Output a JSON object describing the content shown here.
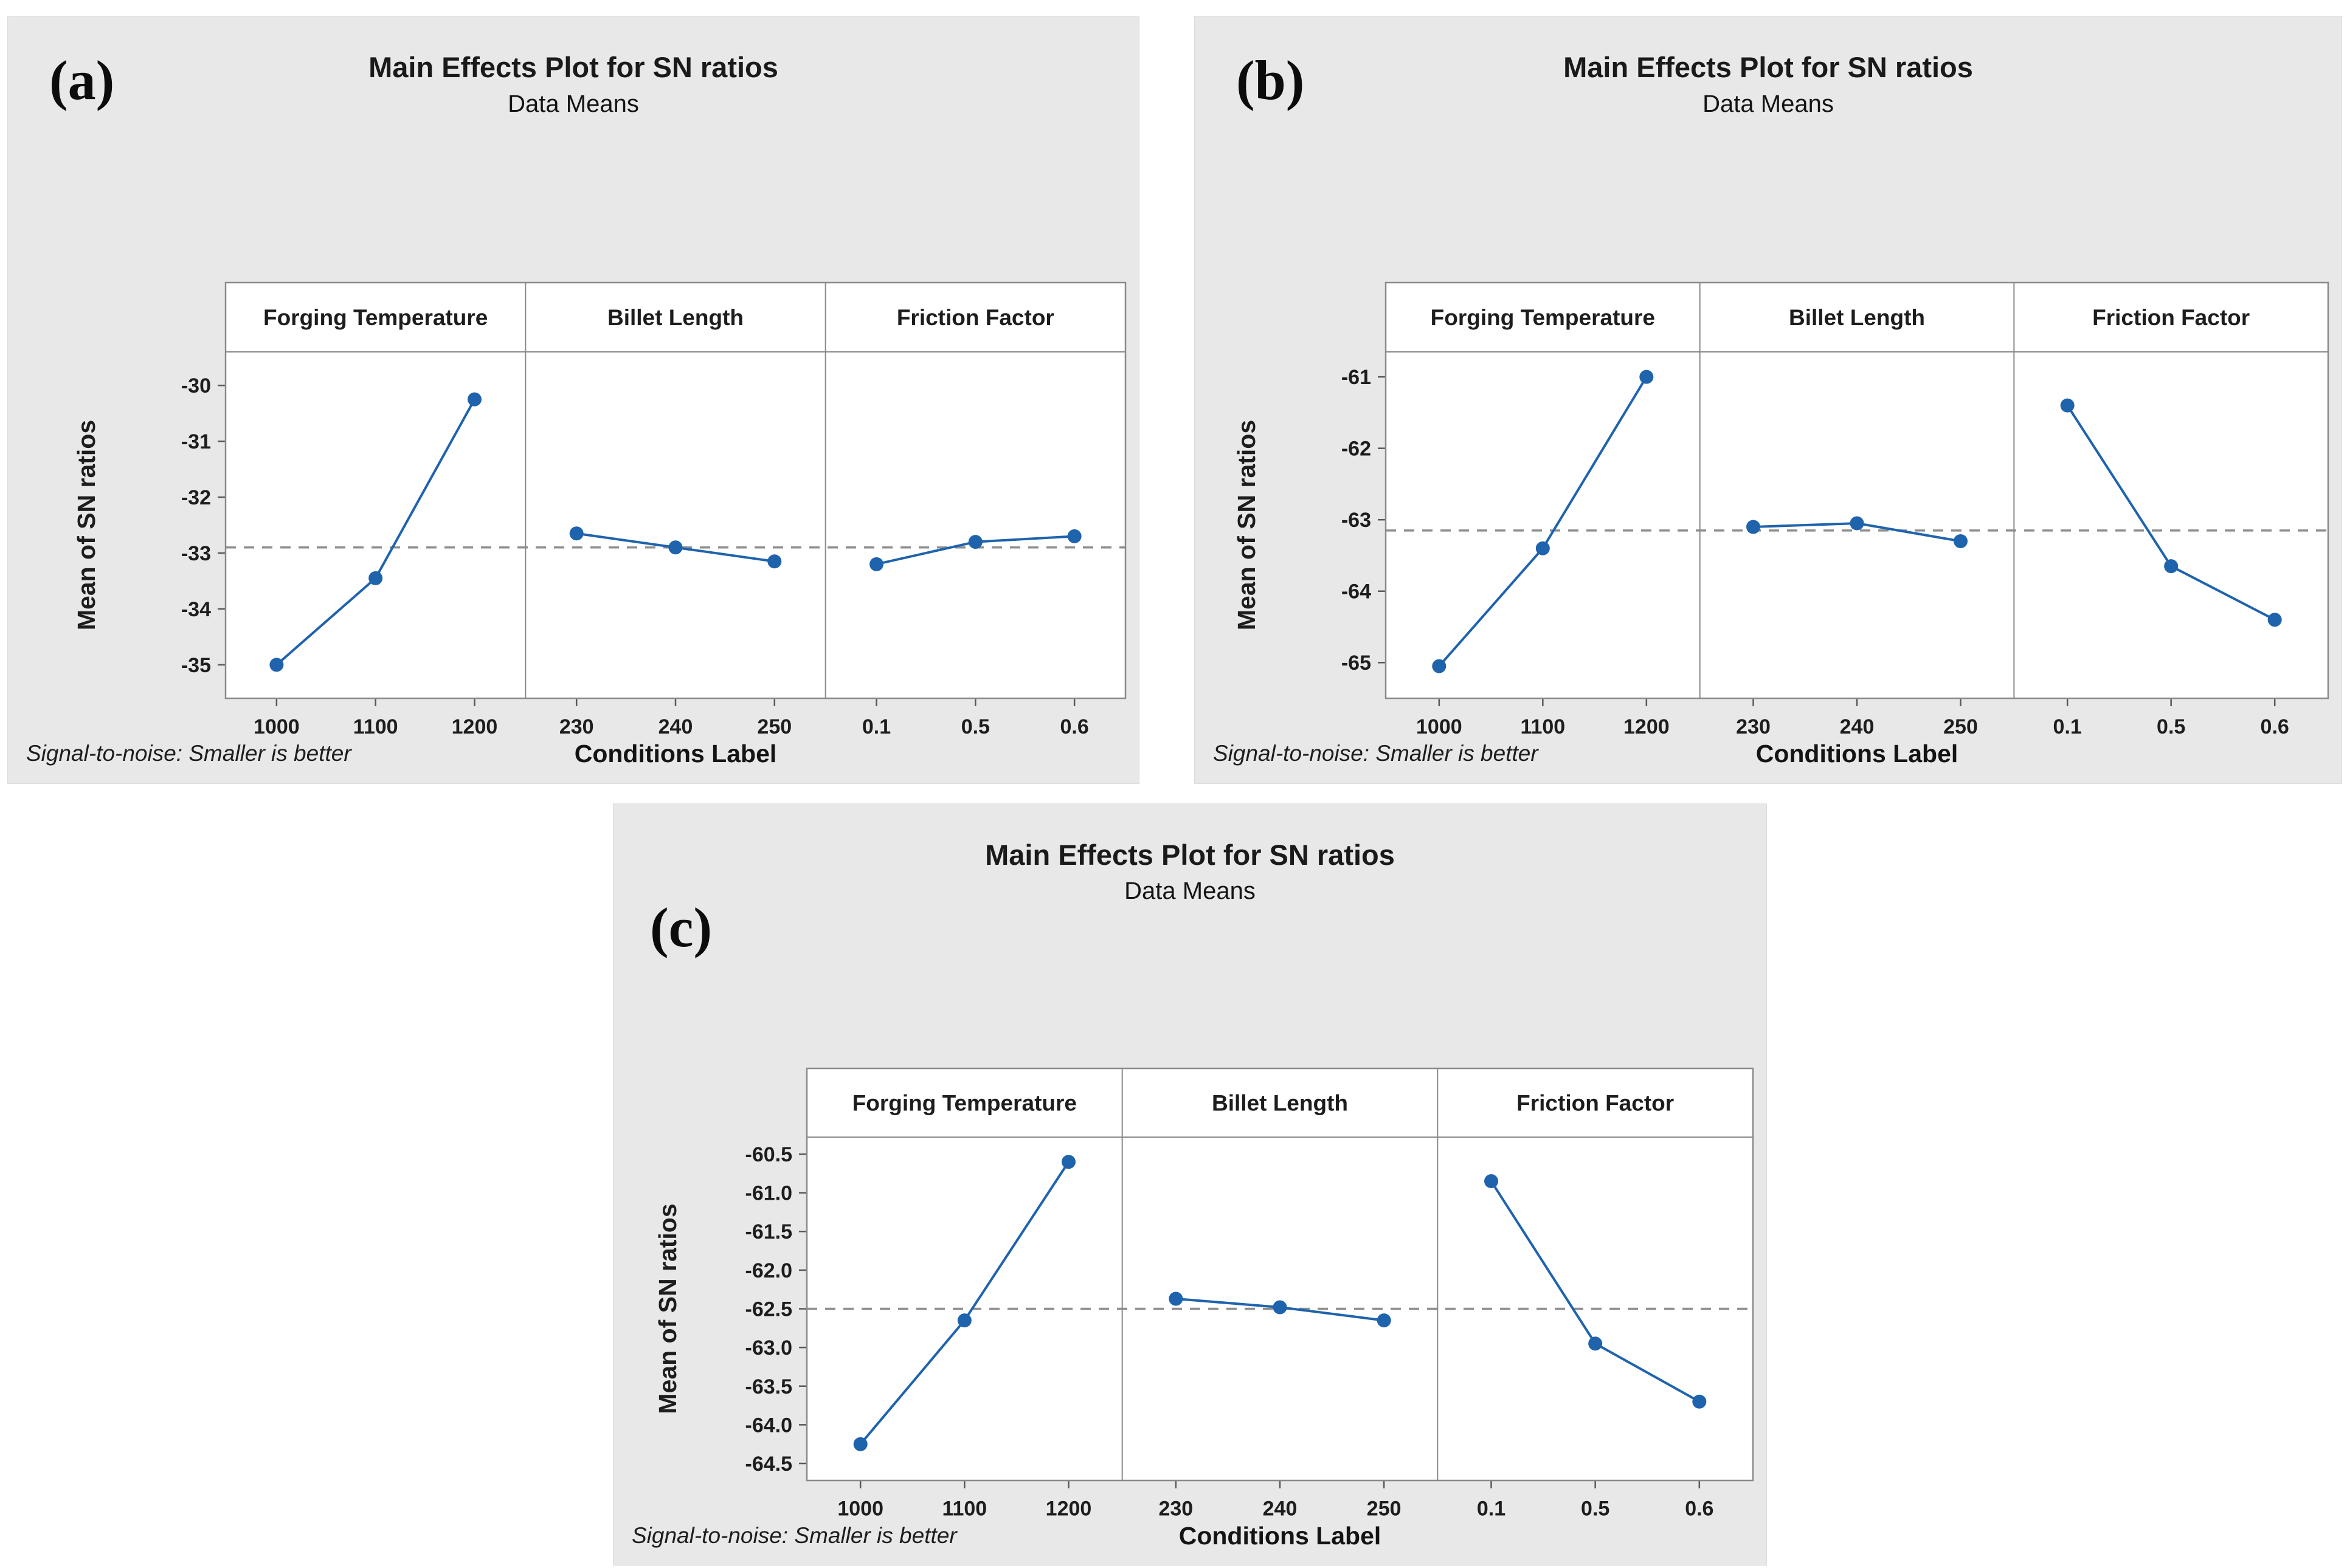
{
  "figure": {
    "title": "Main Effects Plot for SN ratios",
    "subtitle": "Data Means",
    "ylabel": "Mean of SN ratios",
    "xlabel": "Conditions Label",
    "footnote": "Signal-to-noise: Smaller is better",
    "colors": {
      "accent_blue": "#1f63ad",
      "card_background": "#e8e8e8",
      "plot_background": "#ffffff",
      "frame_gray": "#8a8a8a",
      "mean_dash_gray": "#8f8f8f",
      "text_dark": "#1a1a1a"
    }
  },
  "chart_data": [
    {
      "id": "a",
      "label": "(a)",
      "type": "line",
      "title": "Main Effects Plot for SN ratios",
      "subtitle": "Data Means",
      "ylabel": "Mean of SN ratios",
      "xlabel": "Conditions Label",
      "footnote": "Signal-to-noise: Smaller is better",
      "legend": "none",
      "grid": false,
      "factors": [
        {
          "name": "Forging Temperature",
          "categories": [
            "1000",
            "1100",
            "1200"
          ],
          "values": [
            -35.0,
            -33.45,
            -30.25
          ]
        },
        {
          "name": "Billet Length",
          "categories": [
            "230",
            "240",
            "250"
          ],
          "values": [
            -32.65,
            -32.9,
            -33.15
          ]
        },
        {
          "name": "Friction Factor",
          "categories": [
            "0.1",
            "0.5",
            "0.6"
          ],
          "values": [
            -33.2,
            -32.8,
            -32.7
          ]
        }
      ],
      "grand_mean": -32.9,
      "yticks": [
        -30,
        -31,
        -32,
        -33,
        -34,
        -35
      ],
      "ytick_labels": [
        "-30",
        "-31",
        "-32",
        "-33",
        "-34",
        "-35"
      ],
      "ylim_top": -29.4,
      "ylim_bottom": -35.6
    },
    {
      "id": "b",
      "label": "(b)",
      "type": "line",
      "title": "Main Effects Plot for SN ratios",
      "subtitle": "Data Means",
      "ylabel": "Mean of SN ratios",
      "xlabel": "Conditions Label",
      "footnote": "Signal-to-noise: Smaller is better",
      "legend": "none",
      "grid": false,
      "factors": [
        {
          "name": "Forging Temperature",
          "categories": [
            "1000",
            "1100",
            "1200"
          ],
          "values": [
            -65.05,
            -63.4,
            -61.0
          ]
        },
        {
          "name": "Billet Length",
          "categories": [
            "230",
            "240",
            "250"
          ],
          "values": [
            -63.1,
            -63.05,
            -63.3
          ]
        },
        {
          "name": "Friction Factor",
          "categories": [
            "0.1",
            "0.5",
            "0.6"
          ],
          "values": [
            -61.4,
            -63.65,
            -64.4
          ]
        }
      ],
      "grand_mean": -63.15,
      "yticks": [
        -61,
        -62,
        -63,
        -64,
        -65
      ],
      "ytick_labels": [
        "-61",
        "-62",
        "-63",
        "-64",
        "-65"
      ],
      "ylim_top": -60.65,
      "ylim_bottom": -65.5
    },
    {
      "id": "c",
      "label": "(c)",
      "type": "line",
      "title": "Main Effects Plot for SN ratios",
      "subtitle": "Data Means",
      "ylabel": "Mean of SN ratios",
      "xlabel": "Conditions Label",
      "footnote": "Signal-to-noise: Smaller is better",
      "legend": "none",
      "grid": false,
      "factors": [
        {
          "name": "Forging Temperature",
          "categories": [
            "1000",
            "1100",
            "1200"
          ],
          "values": [
            -64.25,
            -62.65,
            -60.6
          ]
        },
        {
          "name": "Billet Length",
          "categories": [
            "230",
            "240",
            "250"
          ],
          "values": [
            -62.37,
            -62.48,
            -62.65
          ]
        },
        {
          "name": "Friction Factor",
          "categories": [
            "0.1",
            "0.5",
            "0.6"
          ],
          "values": [
            -60.85,
            -62.95,
            -63.7
          ]
        }
      ],
      "grand_mean": -62.5,
      "yticks": [
        -60.5,
        -61.0,
        -61.5,
        -62.0,
        -62.5,
        -63.0,
        -63.5,
        -64.0,
        -64.5
      ],
      "ytick_labels": [
        "-60.5",
        "-61.0",
        "-61.5",
        "-62.0",
        "-62.5",
        "-63.0",
        "-63.5",
        "-64.0",
        "-64.5"
      ],
      "ylim_top": -60.28,
      "ylim_bottom": -64.72
    }
  ]
}
